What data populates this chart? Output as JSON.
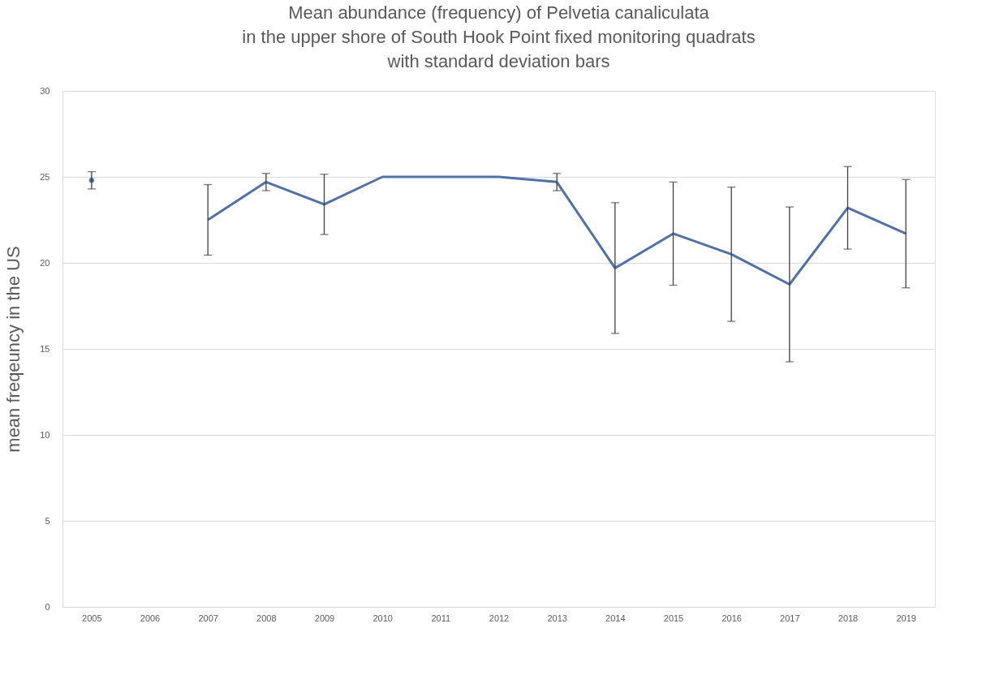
{
  "chart_data": {
    "type": "line",
    "title": "Mean abundance (frequency) of Pelvetia canaliculata\nin the upper shore of South Hook Point fixed monitoring quadrats\nwith standard deviation bars",
    "ylabel": "mean freqeuncy in the  US",
    "categories": [
      "2005",
      "2006",
      "2007",
      "2008",
      "2009",
      "2010",
      "2011",
      "2012",
      "2013",
      "2014",
      "2015",
      "2016",
      "2017",
      "2018",
      "2019"
    ],
    "series": [
      {
        "color": "#4f71a6",
        "values": [
          24.8,
          null,
          22.5,
          24.7,
          23.4,
          25,
          25,
          25,
          24.7,
          19.7,
          21.7,
          20.5,
          18.75,
          23.2,
          21.7
        ],
        "errors": [
          0.5,
          null,
          2.05,
          0.5,
          1.75,
          null,
          null,
          null,
          0.5,
          3.8,
          3.0,
          3.9,
          4.5,
          2.4,
          3.15
        ]
      }
    ],
    "ylim": [
      0,
      30
    ],
    "yticks": [
      0,
      5,
      10,
      15,
      20,
      25,
      30
    ],
    "grid": "y",
    "marker": "none",
    "line_style": "solid"
  }
}
